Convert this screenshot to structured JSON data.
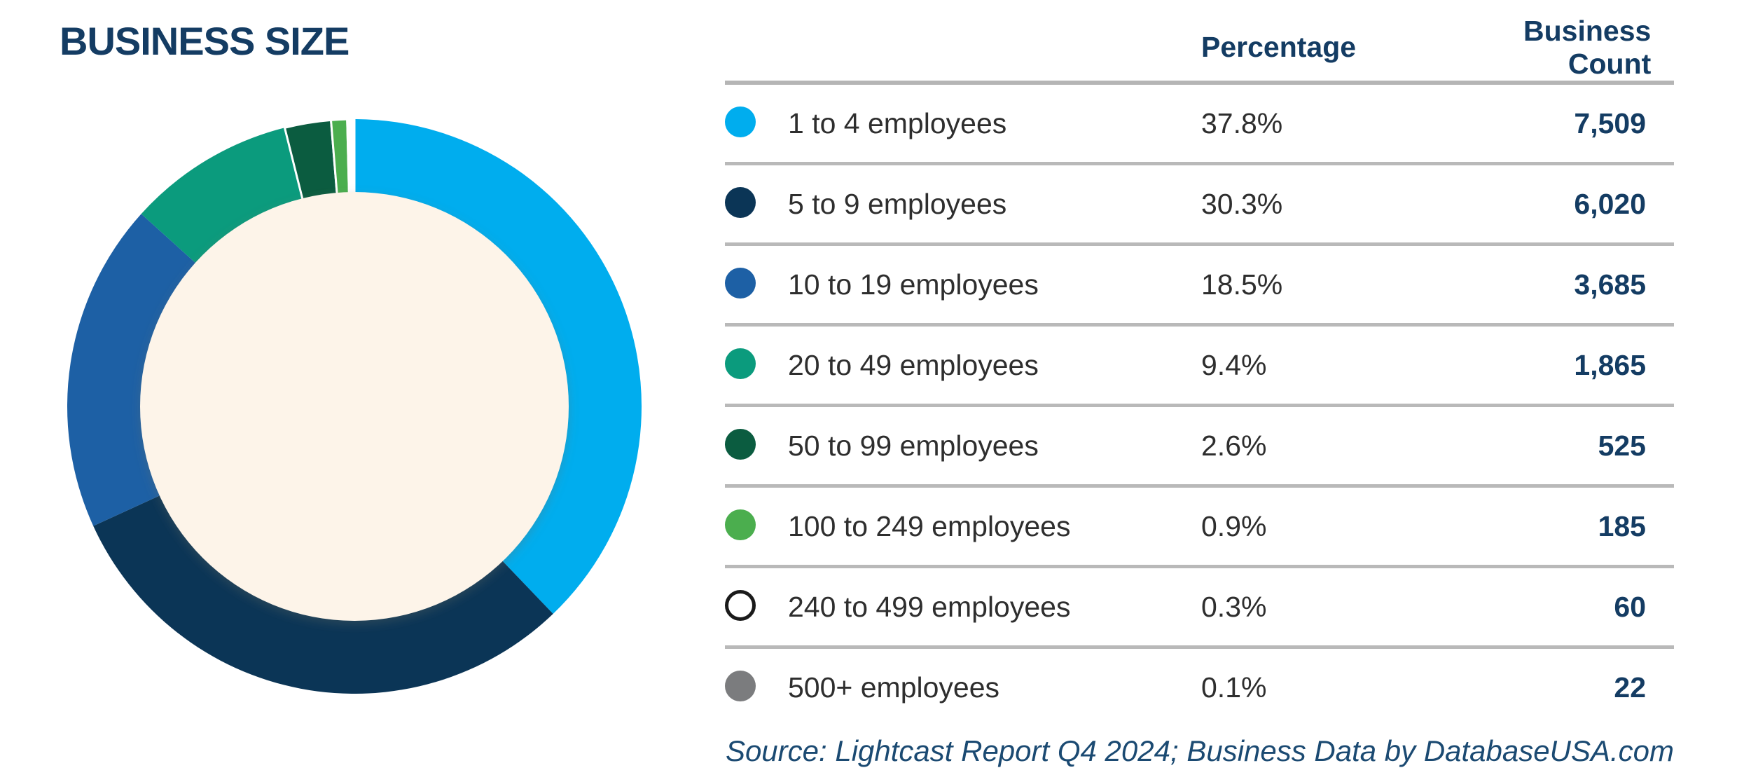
{
  "title": "BUSINESS SIZE",
  "source_note": "Source: Lightcast Report Q4 2024; Business Data by DatabaseUSA.com",
  "colors": {
    "accent_navy": "#143C63",
    "label_gray": "#2e2e2e",
    "rule_gray": "#b5b5b5",
    "hole_cream": "#FDF4E9",
    "source_navy": "#1B4A72"
  },
  "table": {
    "headers": {
      "percentage": "Percentage",
      "count": "Business Count"
    },
    "rows": [
      {
        "label": "1 to 4 employees",
        "percentage": "37.8%",
        "count": "7,509",
        "color": "#00ADEE",
        "swatch_style": "filled"
      },
      {
        "label": "5 to 9 employees",
        "percentage": "30.3%",
        "count": "6,020",
        "color": "#0B3556",
        "swatch_style": "filled"
      },
      {
        "label": "10 to 19 employees",
        "percentage": "18.5%",
        "count": "3,685",
        "color": "#1D60A5",
        "swatch_style": "filled"
      },
      {
        "label": "20 to 49 employees",
        "percentage": "9.4%",
        "count": "1,865",
        "color": "#0B9B7D",
        "swatch_style": "filled"
      },
      {
        "label": "50 to 99 employees",
        "percentage": "2.6%",
        "count": "525",
        "color": "#0B5C40",
        "swatch_style": "filled"
      },
      {
        "label": "100 to 249 employees",
        "percentage": "0.9%",
        "count": "185",
        "color": "#4BAE4E",
        "swatch_style": "filled"
      },
      {
        "label": "240 to 499 employees",
        "percentage": "0.3%",
        "count": "60",
        "color": "#FFFFFF",
        "swatch_style": "outlined"
      },
      {
        "label": "500+ employees",
        "percentage": "0.1%",
        "count": "22",
        "color": "#7B7C7E",
        "swatch_style": "filled"
      }
    ]
  },
  "chart_data": {
    "type": "pie",
    "subtype": "donut",
    "title": "BUSINESS SIZE",
    "categories": [
      "1 to 4 employees",
      "5 to 9 employees",
      "10 to 19 employees",
      "20 to 49 employees",
      "50 to 99 employees",
      "100 to 249 employees",
      "240 to 499 employees",
      "500+ employees"
    ],
    "values": [
      37.8,
      30.3,
      18.5,
      9.4,
      2.6,
      0.9,
      0.3,
      0.1
    ],
    "counts": [
      7509,
      6020,
      3685,
      1865,
      525,
      185,
      60,
      22
    ],
    "colors": [
      "#00ADEE",
      "#0B3556",
      "#1D60A5",
      "#0B9B7D",
      "#0B5C40",
      "#4BAE4E",
      "#FFFFFF",
      "#7B7C7E"
    ],
    "start_angle_deg": 0,
    "direction": "clockwise",
    "inner_radius_ratio": 0.74,
    "hole_color": "#FDF4E9",
    "legend_position": "right-table"
  }
}
